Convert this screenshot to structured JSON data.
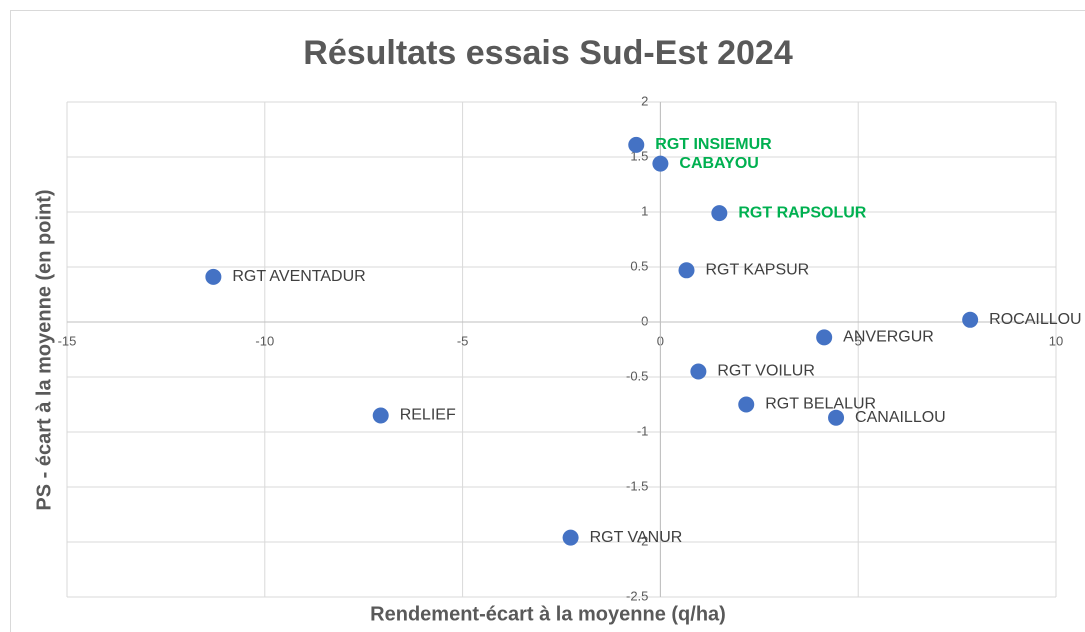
{
  "chart_data": {
    "type": "scatter",
    "title": "Résultats essais Sud-Est 2024",
    "x_label": "Rendement-écart à la moyenne (q/ha)",
    "y_label": "PS - écart à la moyenne (en point)",
    "xlim": [
      -15,
      10
    ],
    "ylim": [
      -2.5,
      2
    ],
    "xticks": [
      -15,
      -10,
      -5,
      0,
      5,
      10
    ],
    "yticks": [
      -2.5,
      -2,
      -1.5,
      -1,
      -0.5,
      0,
      0.5,
      1,
      1.5,
      2
    ],
    "grid": true,
    "series": [
      {
        "color": "#4472c4",
        "labels": [
          "RGT INSIEMUR",
          "CABAYOU",
          "RGT RAPSOLUR",
          "RGT KAPSUR",
          "RGT AVENTADUR",
          "ROCAILLOU",
          "ANVERGUR",
          "RGT VOILUR",
          "RELIEF",
          "RGT BELALUR",
          "CANAILLOU",
          "RGT VANUR"
        ],
        "label_colors": [
          "#00b050",
          "#00b050",
          "#00b050",
          "#404040",
          "#404040",
          "#404040",
          "#404040",
          "#404040",
          "#404040",
          "#404040",
          "#404040",
          "#404040"
        ],
        "x": [
          -0.61,
          0,
          1.49,
          0.66,
          -11.3,
          7.83,
          4.14,
          0.96,
          -7.07,
          2.17,
          4.44,
          -2.27
        ],
        "values": [
          1.61,
          1.44,
          0.99,
          0.47,
          0.41,
          0.02,
          -0.14,
          -0.45,
          -0.85,
          -0.75,
          -0.87,
          -1.96
        ]
      }
    ]
  }
}
